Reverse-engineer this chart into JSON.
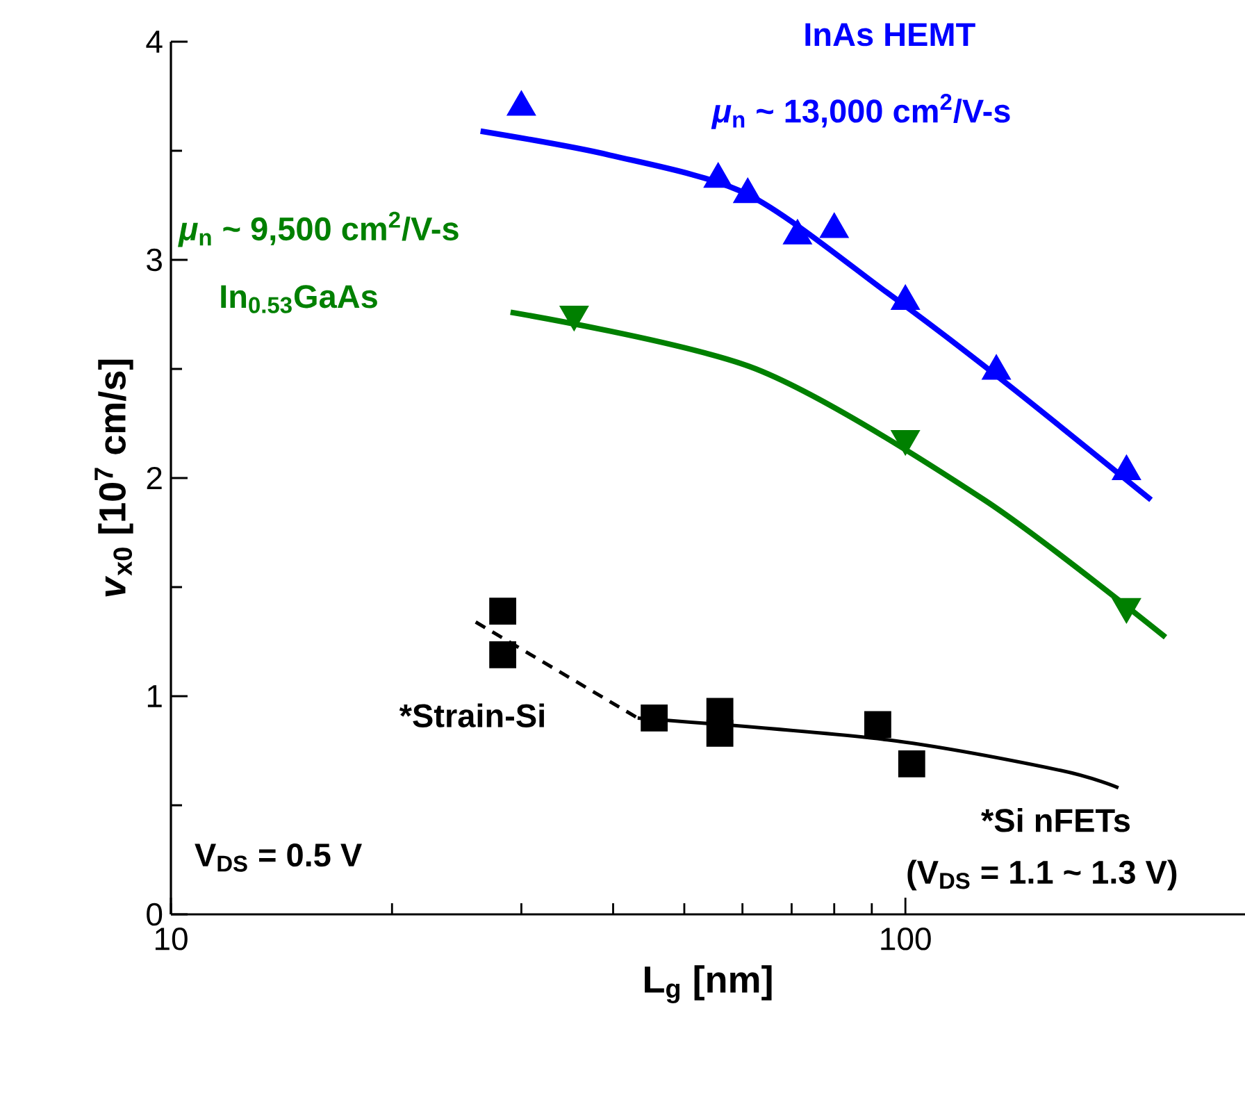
{
  "chart_data": {
    "type": "scatter",
    "xlabel": "L$_{g}$ [nm]",
    "ylabel": "*v*$_{x0}$ [10$^{7}$ cm/s]",
    "log": "x",
    "xlim": [
      10,
      290
    ],
    "ylim": [
      0,
      4
    ],
    "xticks": [
      10,
      100
    ],
    "yticks": [
      0,
      1,
      2,
      3,
      4
    ],
    "grid": false,
    "series": [
      {
        "type": "line",
        "color": "#0000ff",
        "x": [
          26.4,
          39.6,
          61,
          94.4,
          133,
          216
        ],
        "values": [
          3.59,
          3.48,
          3.3,
          2.85,
          2.47,
          1.9
        ],
        "line_style": "solid"
      },
      {
        "name": "InAs HEMT",
        "color": "#0000ff",
        "x": [
          30,
          61,
          80,
          133
        ],
        "values": [
          3.7,
          3.3,
          3.14,
          2.49
        ],
        "marker": "triangle"
      },
      {
        "color": "#0000ff",
        "x": [
          55.6,
          71.3,
          100,
          200
        ],
        "values": [
          3.37,
          3.11,
          2.81,
          2.03
        ],
        "marker": "triangle"
      },
      {
        "type": "line",
        "color": "#008000",
        "x": [
          29,
          62.6,
          128,
          226
        ],
        "values": [
          2.76,
          2.5,
          1.9,
          1.27
        ],
        "line_style": "solid"
      },
      {
        "name": "In$_{0.53}$GaAs",
        "color": "#008000",
        "x": [
          35.4,
          100,
          200
        ],
        "values": [
          2.75,
          2.18,
          1.41
        ],
        "marker": "triangle_down"
      },
      {
        "type": "line",
        "color": "#000000",
        "x": [
          26,
          43.2
        ],
        "values": [
          1.34,
          0.9
        ],
        "line_style": "dashed"
      },
      {
        "type": "line",
        "color": "#000000",
        "x": [
          43.2,
          94.4,
          162.6,
          195
        ],
        "values": [
          0.9,
          0.8,
          0.66,
          0.58
        ],
        "line_style": "solid"
      },
      {
        "name": "*Strain-Si",
        "color": "#000000",
        "x": [
          28.3,
          28.3
        ],
        "values": [
          1.39,
          1.19
        ],
        "marker": "square"
      },
      {
        "name": "*Si nFETs",
        "color": "#000000",
        "x": [
          45.5,
          55.9,
          55.9,
          91.7,
          102
        ],
        "values": [
          0.9,
          0.93,
          0.83,
          0.87,
          0.69
        ],
        "marker": "square"
      }
    ],
    "annotations": [
      "*μ*$_{n}$ ~ 13,000 cm$^{2}$/V-s",
      "*μ*$_{n}$ ~ 9,500 cm$^{2}$/V-s",
      "(V$_{DS}$ = 1.1 ~ 1.3 V)",
      "V$_{DS}$ = 0.5 V"
    ]
  }
}
